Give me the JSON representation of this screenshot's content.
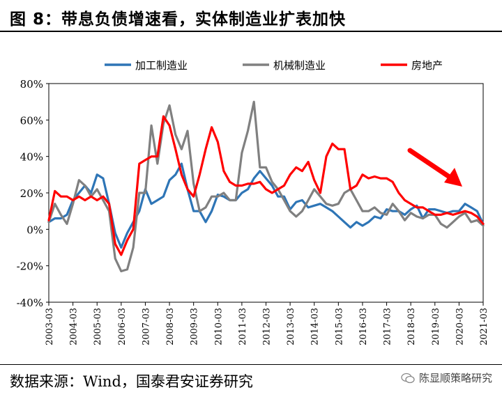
{
  "header": {
    "title": "图 8：带息负债增速看，实体制造业扩表加快"
  },
  "footer": {
    "source": "数据来源：Wind，国泰君安证券研究",
    "watermark": "陈显顺策略研究"
  },
  "colors": {
    "processing": "#2e75b6",
    "machinery": "#808080",
    "realestate": "#ff0000",
    "arrow": "#ff0000"
  },
  "chart_data": {
    "type": "line",
    "ylim": [
      -40,
      80
    ],
    "yticks": [
      "-40%",
      "-20%",
      "0%",
      "20%",
      "40%",
      "60%",
      "80%"
    ],
    "xticks": [
      "2003-03",
      "2004-03",
      "2005-03",
      "2006-03",
      "2007-03",
      "2008-03",
      "2009-03",
      "2010-03",
      "2011-03",
      "2012-03",
      "2013-03",
      "2014-03",
      "2015-03",
      "2016-03",
      "2017-03",
      "2018-03",
      "2019-03",
      "2020-03",
      "2021-03"
    ],
    "legend_position": "top",
    "series": [
      {
        "name": "加工制造业",
        "color": "#2e75b6",
        "x": [
          2003.0,
          2003.25,
          2003.5,
          2003.75,
          2004.0,
          2004.25,
          2004.5,
          2004.75,
          2005.0,
          2005.25,
          2005.5,
          2005.75,
          2006.0,
          2006.25,
          2006.5,
          2006.75,
          2007.0,
          2007.25,
          2007.5,
          2007.75,
          2008.0,
          2008.25,
          2008.5,
          2008.75,
          2009.0,
          2009.25,
          2009.5,
          2009.75,
          2010.0,
          2010.25,
          2010.5,
          2010.75,
          2011.0,
          2011.25,
          2011.5,
          2011.75,
          2012.0,
          2012.25,
          2012.5,
          2012.75,
          2013.0,
          2013.25,
          2013.5,
          2013.75,
          2014.0,
          2014.25,
          2014.5,
          2014.75,
          2015.0,
          2015.25,
          2015.5,
          2015.75,
          2016.0,
          2016.25,
          2016.5,
          2016.75,
          2017.0,
          2017.25,
          2017.5,
          2017.75,
          2018.0,
          2018.25,
          2018.5,
          2018.75,
          2019.0,
          2019.25,
          2019.5,
          2019.75,
          2020.0,
          2020.25,
          2020.5,
          2020.75,
          2021.0
        ],
        "y": [
          4,
          6,
          6,
          8,
          16,
          20,
          24,
          20,
          30,
          28,
          14,
          -2,
          -10,
          -2,
          4,
          10,
          22,
          14,
          16,
          18,
          27,
          30,
          36,
          22,
          10,
          10,
          4,
          10,
          19,
          18,
          16,
          16,
          20,
          22,
          28,
          32,
          28,
          24,
          18,
          18,
          11,
          15,
          16,
          12,
          13,
          14,
          12,
          10,
          7,
          4,
          1,
          4,
          2,
          4,
          7,
          6,
          11,
          10,
          10,
          8,
          11,
          13,
          6,
          11,
          11,
          10,
          9,
          10,
          10,
          14,
          12,
          10,
          3
        ]
      },
      {
        "name": "机械制造业",
        "color": "#808080",
        "x": [
          2003.0,
          2003.25,
          2003.5,
          2003.75,
          2004.0,
          2004.25,
          2004.5,
          2004.75,
          2005.0,
          2005.25,
          2005.5,
          2005.75,
          2006.0,
          2006.25,
          2006.5,
          2006.75,
          2007.0,
          2007.25,
          2007.5,
          2007.75,
          2008.0,
          2008.25,
          2008.5,
          2008.75,
          2009.0,
          2009.25,
          2009.5,
          2009.75,
          2010.0,
          2010.25,
          2010.5,
          2010.75,
          2011.0,
          2011.25,
          2011.5,
          2011.75,
          2012.0,
          2012.25,
          2012.5,
          2012.75,
          2013.0,
          2013.25,
          2013.5,
          2013.75,
          2014.0,
          2014.25,
          2014.5,
          2014.75,
          2015.0,
          2015.25,
          2015.5,
          2015.75,
          2016.0,
          2016.25,
          2016.5,
          2016.75,
          2017.0,
          2017.25,
          2017.5,
          2017.75,
          2018.0,
          2018.25,
          2018.5,
          2018.75,
          2019.0,
          2019.25,
          2019.5,
          2019.75,
          2020.0,
          2020.25,
          2020.5,
          2020.75,
          2021.0
        ],
        "y": [
          4,
          14,
          8,
          3,
          14,
          27,
          24,
          18,
          22,
          16,
          10,
          -16,
          -23,
          -22,
          -10,
          20,
          20,
          57,
          36,
          58,
          68,
          52,
          44,
          54,
          25,
          10,
          12,
          18,
          18,
          20,
          16,
          16,
          42,
          54,
          70,
          34,
          34,
          26,
          22,
          16,
          10,
          7,
          10,
          16,
          22,
          18,
          14,
          13,
          14,
          20,
          22,
          16,
          10,
          10,
          12,
          9,
          8,
          14,
          10,
          5,
          9,
          7,
          6,
          8,
          8,
          3,
          1,
          4,
          7,
          9,
          4,
          5,
          2
        ]
      },
      {
        "name": "房地产",
        "color": "#ff0000",
        "x": [
          2003.0,
          2003.25,
          2003.5,
          2003.75,
          2004.0,
          2004.25,
          2004.5,
          2004.75,
          2005.0,
          2005.25,
          2005.5,
          2005.75,
          2006.0,
          2006.25,
          2006.5,
          2006.75,
          2007.0,
          2007.25,
          2007.5,
          2007.75,
          2008.0,
          2008.25,
          2008.5,
          2008.75,
          2009.0,
          2009.25,
          2009.5,
          2009.75,
          2010.0,
          2010.25,
          2010.5,
          2010.75,
          2011.0,
          2011.25,
          2011.5,
          2011.75,
          2012.0,
          2012.25,
          2012.5,
          2012.75,
          2013.0,
          2013.25,
          2013.5,
          2013.75,
          2014.0,
          2014.25,
          2014.5,
          2014.75,
          2015.0,
          2015.25,
          2015.5,
          2015.75,
          2016.0,
          2016.25,
          2016.5,
          2016.75,
          2017.0,
          2017.25,
          2017.5,
          2017.75,
          2018.0,
          2018.25,
          2018.5,
          2018.75,
          2019.0,
          2019.25,
          2019.5,
          2019.75,
          2020.0,
          2020.25,
          2020.5,
          2020.75,
          2021.0
        ],
        "y": [
          5,
          21,
          18,
          18,
          16,
          18,
          16,
          18,
          16,
          18,
          14,
          -8,
          -14,
          -6,
          0,
          36,
          38,
          40,
          40,
          62,
          57,
          44,
          30,
          22,
          18,
          30,
          44,
          56,
          48,
          32,
          26,
          24,
          24,
          25,
          25,
          26,
          22,
          20,
          22,
          24,
          30,
          34,
          32,
          37,
          27,
          20,
          40,
          47,
          44,
          44,
          22,
          24,
          30,
          28,
          29,
          28,
          28,
          26,
          20,
          16,
          14,
          12,
          12,
          10,
          8,
          8,
          9,
          8,
          9,
          10,
          9,
          7,
          3
        ]
      }
    ],
    "annotation": "red arrow indicating downward trend"
  }
}
